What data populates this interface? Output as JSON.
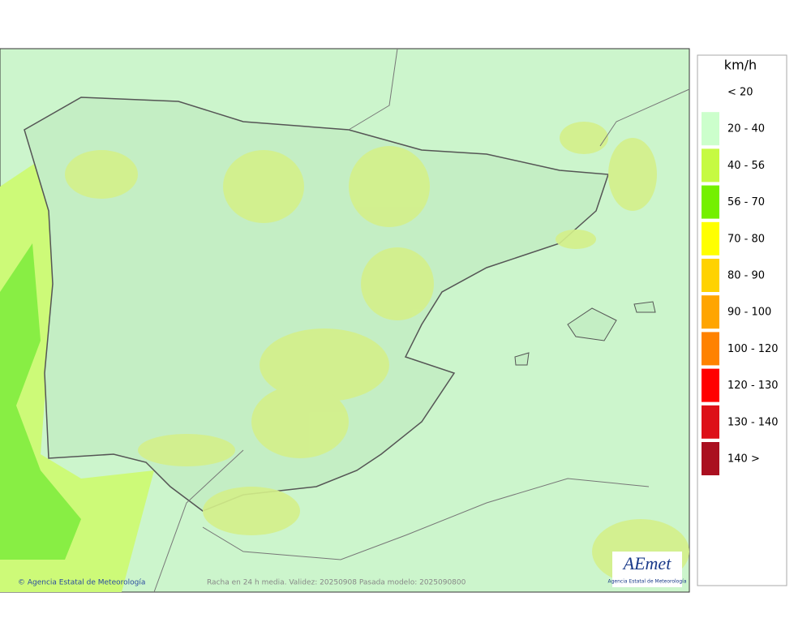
{
  "legend": {
    "title": "km/h",
    "items": [
      {
        "label": "< 20",
        "color": null
      },
      {
        "label": "20 - 40",
        "color": "#ccffcc"
      },
      {
        "label": "40 - 56",
        "color": "#c6fa42"
      },
      {
        "label": "56 - 70",
        "color": "#74f000"
      },
      {
        "label": "70 - 80",
        "color": "#ffff00"
      },
      {
        "label": "80 - 90",
        "color": "#ffd200"
      },
      {
        "label": "90 - 100",
        "color": "#ffa500"
      },
      {
        "label": "100 - 120",
        "color": "#ff8200"
      },
      {
        "label": "120 - 130",
        "color": "#ff0000"
      },
      {
        "label": "130 - 140",
        "color": "#dd1018"
      },
      {
        "label": "140 >",
        "color": "#aa1020"
      }
    ]
  },
  "footer": {
    "credit": "© Agencia Estatal de Meteorología",
    "caption": "Racha en 24 h media. Validez: 20250908 Pasada modelo: 2025090800"
  },
  "logo": {
    "name": "AEmet",
    "subtitle": "Agencia Estatal de Meteorología"
  }
}
